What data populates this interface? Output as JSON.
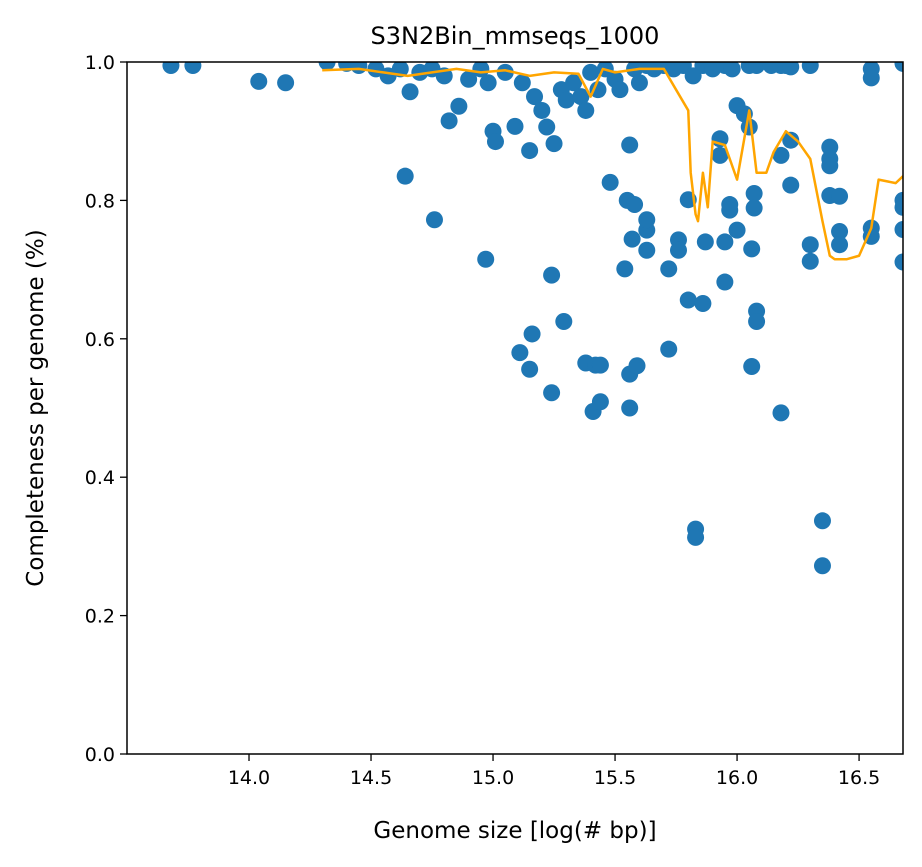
{
  "chart_data": {
    "type": "scatter",
    "title": "S3N2Bin_mmseqs_1000",
    "xlabel": "Genome size [log(# bp)]",
    "ylabel": "Completeness per genome (%)",
    "xlim": [
      13.5,
      16.68
    ],
    "ylim": [
      0.0,
      1.0
    ],
    "xticks": [
      "14.0",
      "14.5",
      "15.0",
      "15.5",
      "16.0",
      "16.5"
    ],
    "yticks": [
      "0.0",
      "0.2",
      "0.4",
      "0.6",
      "0.8",
      "1.0"
    ],
    "grid": false,
    "colors": {
      "points": "#1f77b4",
      "line": "#ffa500"
    },
    "series": [
      {
        "kind": "scatter",
        "points": [
          [
            13.68,
            0.995
          ],
          [
            13.77,
            0.995
          ],
          [
            14.04,
            0.972
          ],
          [
            14.15,
            0.97
          ],
          [
            14.32,
            1.0
          ],
          [
            14.4,
            0.998
          ],
          [
            14.45,
            0.995
          ],
          [
            14.52,
            0.99
          ],
          [
            14.57,
            0.98
          ],
          [
            14.62,
            0.99
          ],
          [
            14.66,
            0.957
          ],
          [
            14.7,
            0.985
          ],
          [
            14.75,
            0.99
          ],
          [
            14.8,
            0.98
          ],
          [
            14.82,
            0.915
          ],
          [
            14.86,
            0.936
          ],
          [
            14.9,
            0.975
          ],
          [
            14.95,
            0.99
          ],
          [
            14.98,
            0.97
          ],
          [
            15.0,
            0.9
          ],
          [
            15.01,
            0.885
          ],
          [
            15.05,
            0.985
          ],
          [
            15.09,
            0.907
          ],
          [
            15.12,
            0.97
          ],
          [
            15.15,
            0.872
          ],
          [
            15.17,
            0.95
          ],
          [
            15.2,
            0.93
          ],
          [
            15.22,
            0.906
          ],
          [
            15.25,
            0.882
          ],
          [
            15.28,
            0.96
          ],
          [
            15.3,
            0.945
          ],
          [
            15.33,
            0.97
          ],
          [
            15.36,
            0.95
          ],
          [
            15.38,
            0.93
          ],
          [
            15.4,
            0.985
          ],
          [
            15.43,
            0.96
          ],
          [
            15.46,
            0.99
          ],
          [
            15.5,
            0.975
          ],
          [
            15.52,
            0.96
          ],
          [
            15.56,
            0.88
          ],
          [
            15.58,
            0.99
          ],
          [
            15.6,
            0.97
          ],
          [
            15.63,
            0.995
          ],
          [
            15.66,
            0.99
          ],
          [
            15.7,
            0.995
          ],
          [
            15.74,
            0.99
          ],
          [
            15.78,
            0.995
          ],
          [
            15.82,
            0.98
          ],
          [
            15.86,
            0.995
          ],
          [
            15.9,
            0.99
          ],
          [
            15.95,
            0.995
          ],
          [
            15.98,
            0.99
          ],
          [
            16.0,
            0.937
          ],
          [
            16.03,
            0.925
          ],
          [
            16.05,
            0.995
          ],
          [
            16.08,
            0.995
          ],
          [
            16.14,
            0.995
          ],
          [
            16.18,
            0.995
          ],
          [
            16.2,
            0.995
          ],
          [
            16.22,
            0.993
          ],
          [
            16.3,
            0.995
          ],
          [
            16.55,
            0.99
          ],
          [
            16.55,
            0.977
          ],
          [
            16.68,
            0.998
          ],
          [
            14.64,
            0.835
          ],
          [
            14.76,
            0.772
          ],
          [
            14.97,
            0.715
          ],
          [
            15.11,
            0.58
          ],
          [
            15.15,
            0.556
          ],
          [
            15.16,
            0.607
          ],
          [
            15.24,
            0.692
          ],
          [
            15.24,
            0.522
          ],
          [
            15.29,
            0.625
          ],
          [
            15.38,
            0.565
          ],
          [
            15.41,
            0.495
          ],
          [
            15.42,
            0.562
          ],
          [
            15.44,
            0.509
          ],
          [
            15.44,
            0.562
          ],
          [
            15.48,
            0.826
          ],
          [
            15.54,
            0.701
          ],
          [
            15.55,
            0.8
          ],
          [
            15.56,
            0.549
          ],
          [
            15.56,
            0.5
          ],
          [
            15.57,
            0.744
          ],
          [
            15.58,
            0.794
          ],
          [
            15.59,
            0.561
          ],
          [
            15.63,
            0.728
          ],
          [
            15.63,
            0.757
          ],
          [
            15.63,
            0.772
          ],
          [
            15.72,
            0.701
          ],
          [
            15.72,
            0.585
          ],
          [
            15.76,
            0.743
          ],
          [
            15.76,
            0.728
          ],
          [
            15.8,
            0.801
          ],
          [
            15.8,
            0.656
          ],
          [
            15.83,
            0.325
          ],
          [
            15.83,
            0.313
          ],
          [
            15.86,
            0.651
          ],
          [
            15.87,
            0.74
          ],
          [
            15.93,
            0.889
          ],
          [
            15.93,
            0.865
          ],
          [
            15.95,
            0.682
          ],
          [
            15.95,
            0.74
          ],
          [
            15.97,
            0.794
          ],
          [
            15.97,
            0.786
          ],
          [
            16.0,
            0.757
          ],
          [
            16.05,
            0.906
          ],
          [
            16.06,
            0.73
          ],
          [
            16.06,
            0.56
          ],
          [
            16.07,
            0.81
          ],
          [
            16.07,
            0.789
          ],
          [
            16.08,
            0.64
          ],
          [
            16.08,
            0.625
          ],
          [
            16.18,
            0.865
          ],
          [
            16.18,
            0.493
          ],
          [
            16.22,
            0.887
          ],
          [
            16.22,
            0.822
          ],
          [
            16.3,
            0.736
          ],
          [
            16.3,
            0.712
          ],
          [
            16.35,
            0.337
          ],
          [
            16.35,
            0.272
          ],
          [
            16.38,
            0.877
          ],
          [
            16.38,
            0.86
          ],
          [
            16.38,
            0.85
          ],
          [
            16.38,
            0.807
          ],
          [
            16.42,
            0.806
          ],
          [
            16.42,
            0.755
          ],
          [
            16.42,
            0.736
          ],
          [
            16.55,
            0.76
          ],
          [
            16.55,
            0.748
          ],
          [
            16.68,
            0.8
          ],
          [
            16.68,
            0.79
          ],
          [
            16.68,
            0.758
          ],
          [
            16.68,
            0.711
          ]
        ]
      },
      {
        "kind": "line",
        "points": [
          [
            14.3,
            0.988
          ],
          [
            14.45,
            0.99
          ],
          [
            14.55,
            0.985
          ],
          [
            14.65,
            0.98
          ],
          [
            14.75,
            0.985
          ],
          [
            14.85,
            0.99
          ],
          [
            14.95,
            0.985
          ],
          [
            15.05,
            0.988
          ],
          [
            15.15,
            0.98
          ],
          [
            15.25,
            0.985
          ],
          [
            15.35,
            0.983
          ],
          [
            15.4,
            0.95
          ],
          [
            15.45,
            0.99
          ],
          [
            15.5,
            0.985
          ],
          [
            15.6,
            0.99
          ],
          [
            15.7,
            0.99
          ],
          [
            15.75,
            0.96
          ],
          [
            15.8,
            0.93
          ],
          [
            15.81,
            0.84
          ],
          [
            15.83,
            0.78
          ],
          [
            15.84,
            0.77
          ],
          [
            15.86,
            0.84
          ],
          [
            15.88,
            0.79
          ],
          [
            15.9,
            0.885
          ],
          [
            15.95,
            0.88
          ],
          [
            15.97,
            0.86
          ],
          [
            16.0,
            0.83
          ],
          [
            16.05,
            0.93
          ],
          [
            16.08,
            0.84
          ],
          [
            16.12,
            0.84
          ],
          [
            16.15,
            0.87
          ],
          [
            16.2,
            0.9
          ],
          [
            16.25,
            0.885
          ],
          [
            16.3,
            0.86
          ],
          [
            16.35,
            0.77
          ],
          [
            16.38,
            0.72
          ],
          [
            16.4,
            0.715
          ],
          [
            16.45,
            0.715
          ],
          [
            16.5,
            0.72
          ],
          [
            16.55,
            0.76
          ],
          [
            16.58,
            0.83
          ],
          [
            16.65,
            0.825
          ],
          [
            16.68,
            0.835
          ]
        ]
      }
    ]
  }
}
